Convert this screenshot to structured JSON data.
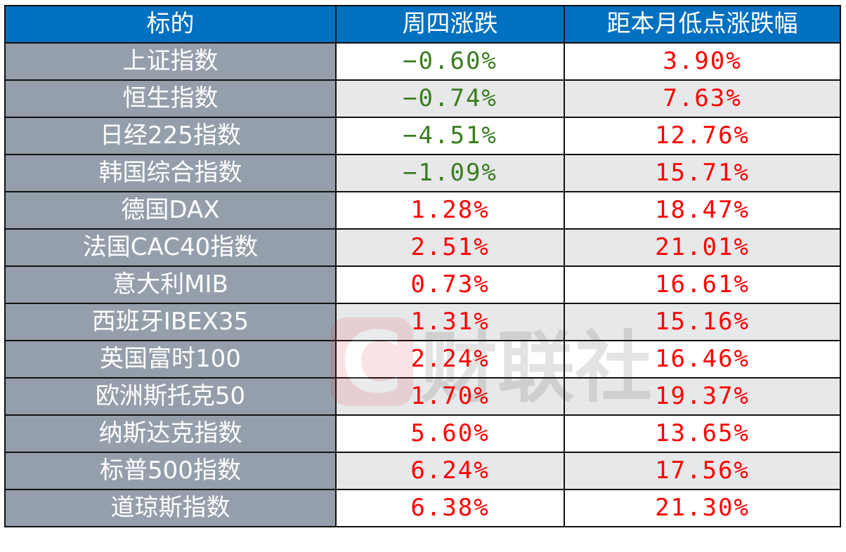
{
  "header": [
    "标的",
    "周四涨跌",
    "距本月低点涨跌幅"
  ],
  "rows": [
    {
      "name": "上证指数",
      "thu": "−0.60%",
      "from_low": "3.90%"
    },
    {
      "name": "恒生指数",
      "thu": "−0.74%",
      "from_low": "7.63%"
    },
    {
      "name": "日经225指数",
      "thu": "−4.51%",
      "from_low": "12.76%"
    },
    {
      "name": "韩国综合指数",
      "thu": "−1.09%",
      "from_low": "15.71%"
    },
    {
      "name": "德国DAX",
      "thu": "1.28%",
      "from_low": "18.47%"
    },
    {
      "name": "法国CAC40指数",
      "thu": "2.51%",
      "from_low": "21.01%"
    },
    {
      "name": "意大利MIB",
      "thu": "0.73%",
      "from_low": "16.61%"
    },
    {
      "name": "西班牙IBEX35",
      "thu": "1.31%",
      "from_low": "15.16%"
    },
    {
      "name": "英国富时100",
      "thu": "2.24%",
      "from_low": "16.46%"
    },
    {
      "name": "欧洲斯托克50",
      "thu": "1.70%",
      "from_low": "19.37%"
    },
    {
      "name": "纳斯达克指数",
      "thu": "5.60%",
      "from_low": "13.65%"
    },
    {
      "name": "标普500指数",
      "thu": "6.24%",
      "from_low": "17.56%"
    },
    {
      "name": "道琼斯指数",
      "thu": "6.38%",
      "from_low": "21.30%"
    }
  ],
  "watermark": "财联社",
  "colors": {
    "header_bg": "#0070c0",
    "name_bg": "#959fab",
    "negative": "#3a7d1e",
    "positive": "#ff0000",
    "alt_row": "#e7e8ea"
  }
}
